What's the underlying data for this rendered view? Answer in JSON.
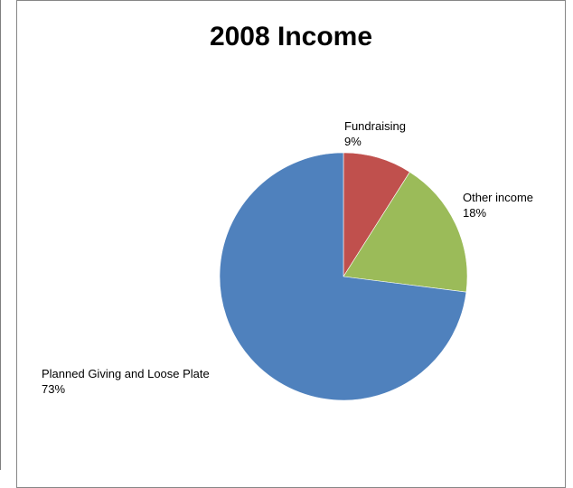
{
  "chart_data": {
    "type": "pie",
    "title": "2008 Income",
    "slices": [
      {
        "label": "Fundraising",
        "value": 9,
        "display": "9%",
        "color": "#c0504d"
      },
      {
        "label": "Other income",
        "value": 18,
        "display": "18%",
        "color": "#9bbb59"
      },
      {
        "label": "Planned Giving and Loose Plate",
        "value": 73,
        "display": "73%",
        "color": "#4f81bd"
      }
    ],
    "start": "12 o'clock",
    "direction": "clockwise",
    "legend": "none"
  }
}
